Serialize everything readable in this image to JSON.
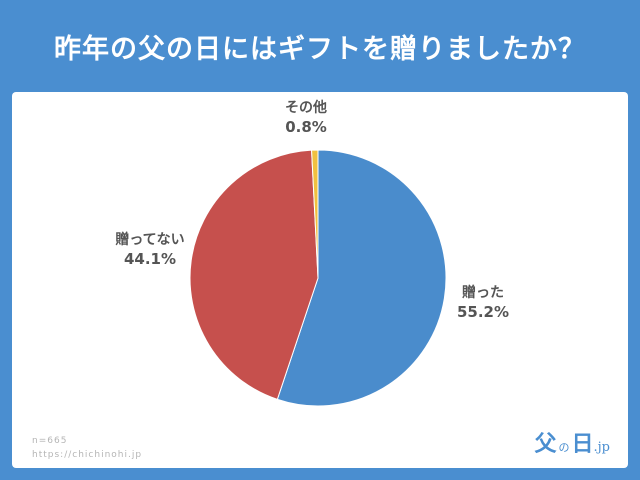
{
  "title": "昨年の父の日にはギフトを贈りましたか？",
  "colors": {
    "background": "#4a8ed0",
    "panel": "#ffffff",
    "text": "#555555"
  },
  "chart_data": {
    "type": "pie",
    "slices": [
      {
        "label": "贈った",
        "value": 55.2,
        "display": "55.2%",
        "color": "#4a8ccc"
      },
      {
        "label": "贈ってない",
        "value": 44.1,
        "display": "44.1%",
        "color": "#c6504d"
      },
      {
        "label": "その他",
        "value": 0.8,
        "display": "0.8%",
        "color": "#f0c040"
      }
    ],
    "start": "top",
    "direction": "clockwise"
  },
  "footer": {
    "sample_size": "n=665",
    "url": "https://chichinohi.jp"
  },
  "logo": {
    "main": "父",
    "particle": "の",
    "day": "日",
    "domain": ".jp"
  }
}
